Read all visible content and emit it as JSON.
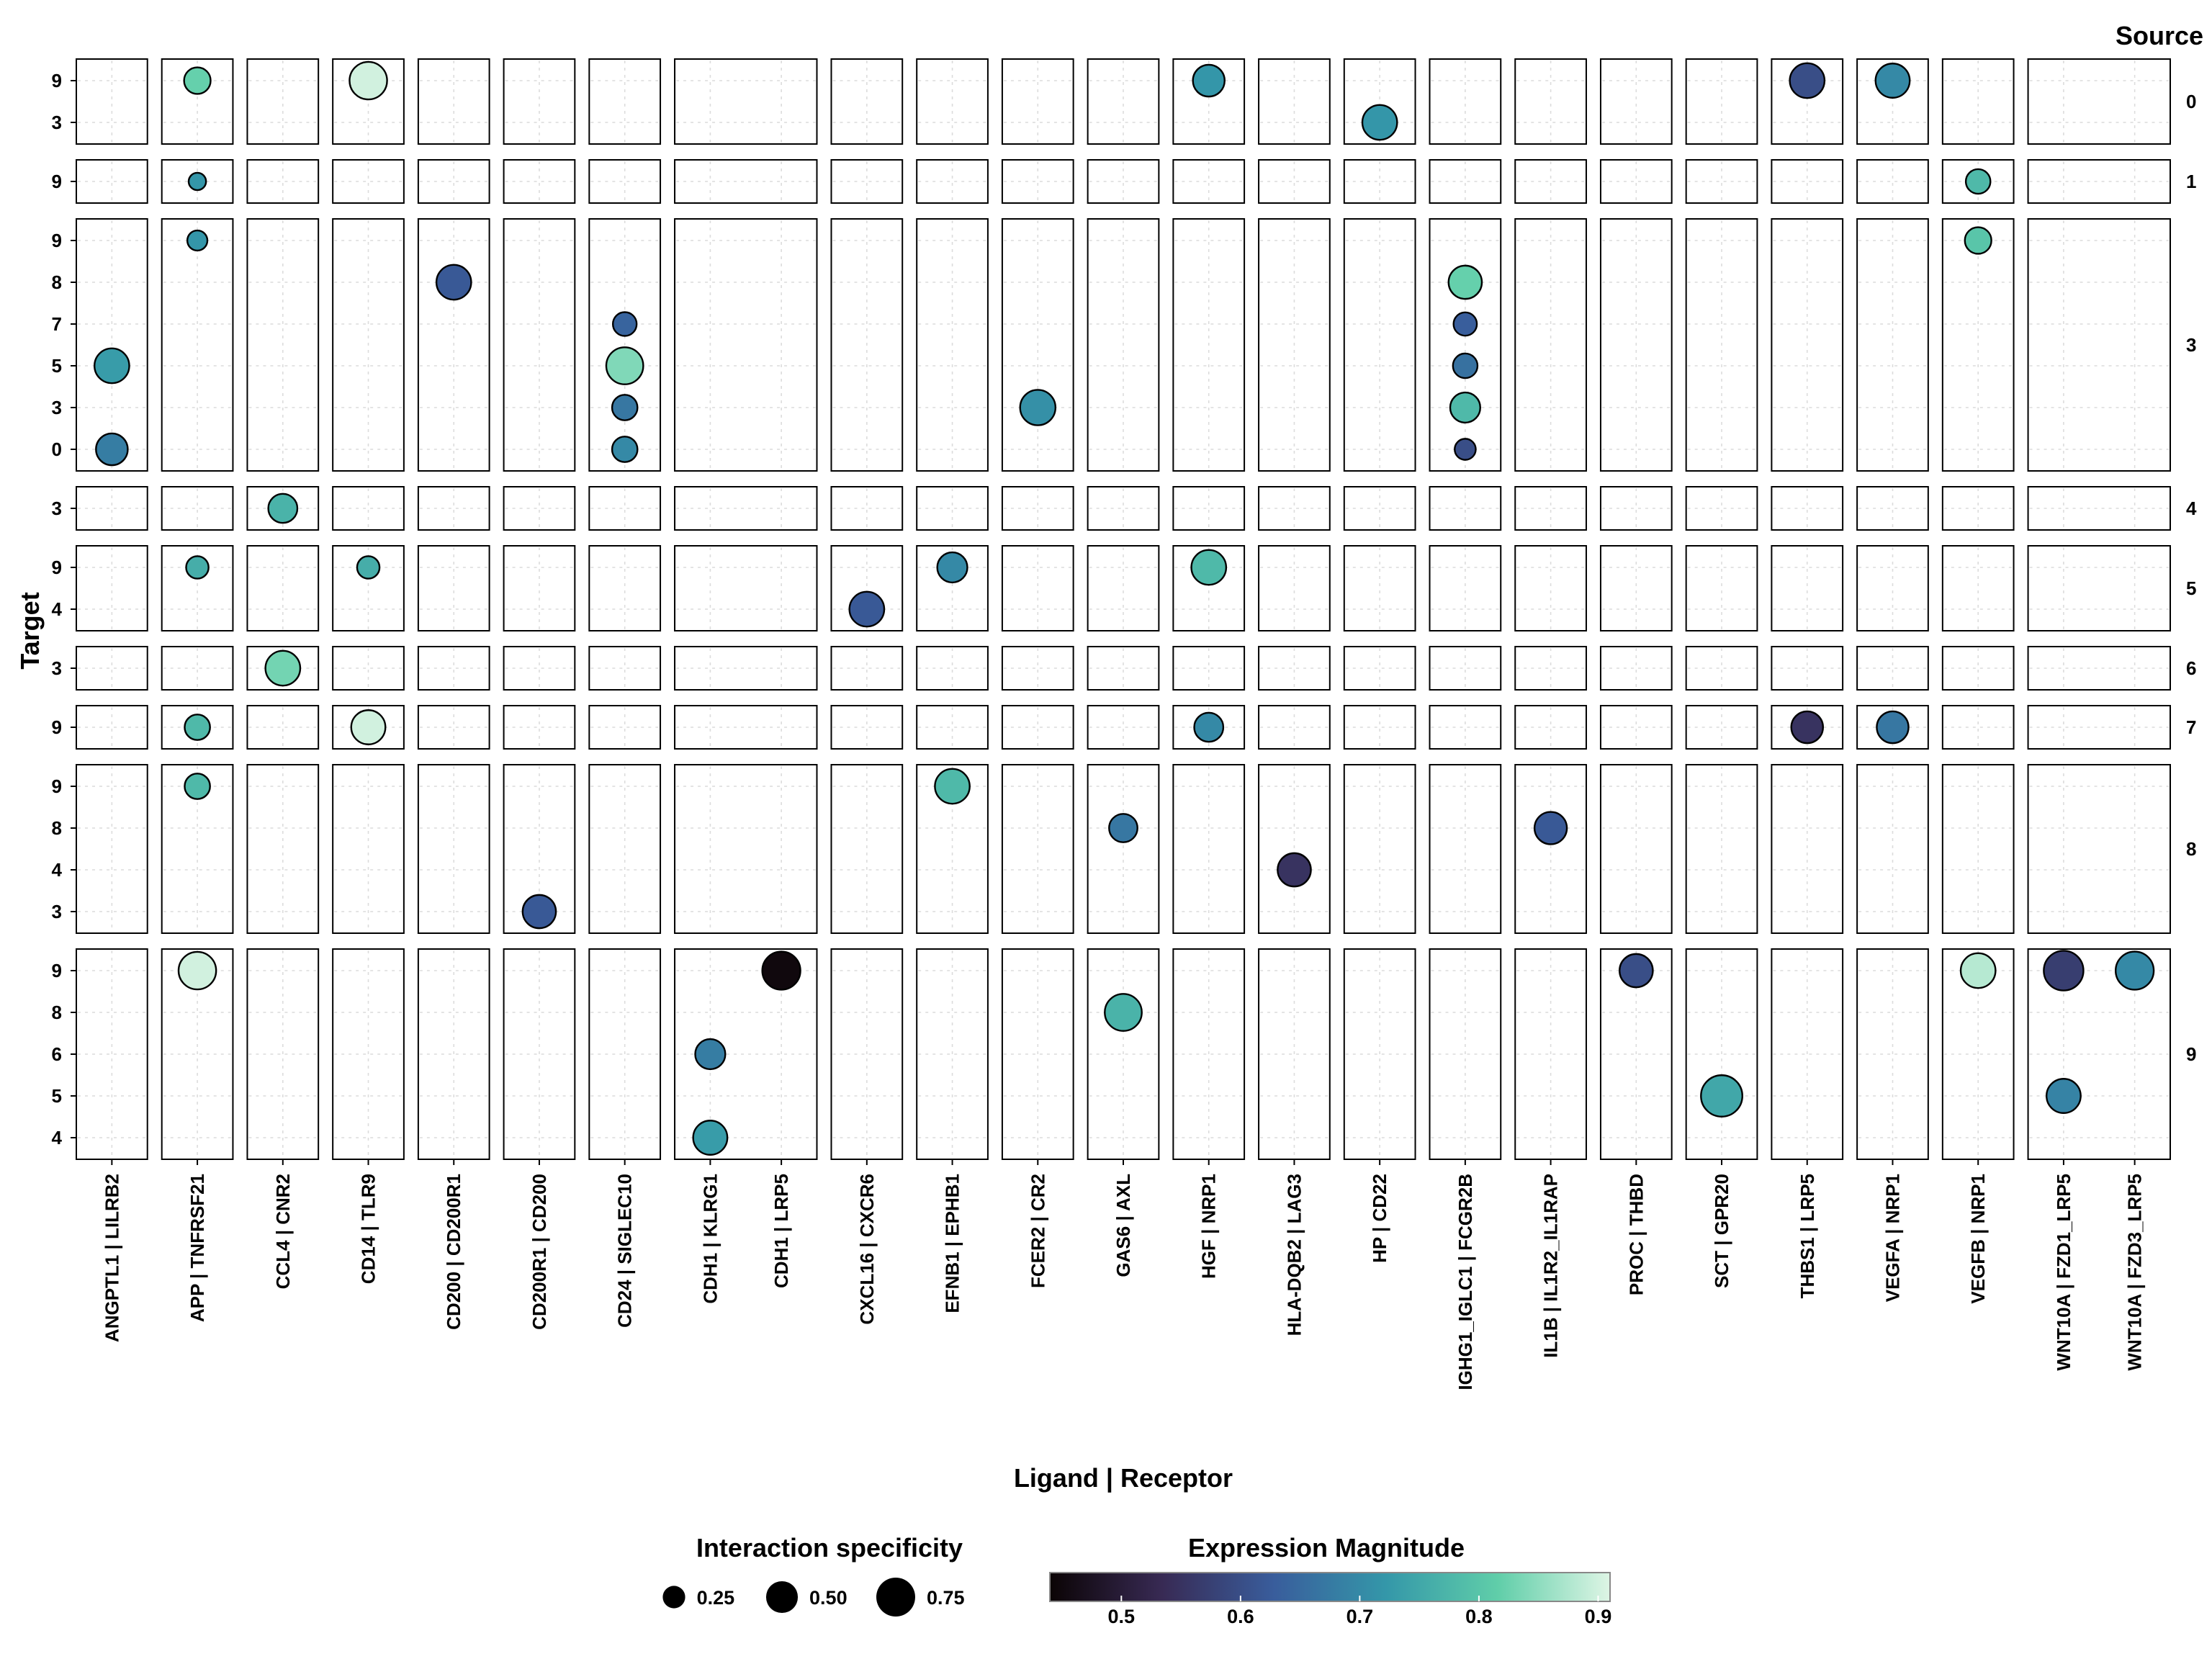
{
  "chart_data": {
    "type": "scatter",
    "subtype": "faceted dot plot",
    "xlabel": "Ligand | Receptor",
    "ylabel": "Target",
    "facet_row_title": "Source",
    "columns": [
      {
        "ligand": "ANGPTL1",
        "pairs": [
          "ANGPTL1 | LILRB2"
        ]
      },
      {
        "ligand": "APP",
        "pairs": [
          "APP | TNFRSF21"
        ]
      },
      {
        "ligand": "CCL4",
        "pairs": [
          "CCL4 | CNR2"
        ]
      },
      {
        "ligand": "CD14",
        "pairs": [
          "CD14 | TLR9"
        ]
      },
      {
        "ligand": "CD200",
        "pairs": [
          "CD200 | CD200R1"
        ]
      },
      {
        "ligand": "CD200R1",
        "pairs": [
          "CD200R1 | CD200"
        ]
      },
      {
        "ligand": "CD24",
        "pairs": [
          "CD24 | SIGLEC10"
        ]
      },
      {
        "ligand": "CDH1",
        "pairs": [
          "CDH1 | KLRG1",
          "CDH1 | LRP5"
        ]
      },
      {
        "ligand": "CXCL16",
        "pairs": [
          "CXCL16 | CXCR6"
        ]
      },
      {
        "ligand": "EFNB1",
        "pairs": [
          "EFNB1 | EPHB1"
        ]
      },
      {
        "ligand": "FCER2",
        "pairs": [
          "FCER2 | CR2"
        ]
      },
      {
        "ligand": "GAS6",
        "pairs": [
          "GAS6 | AXL"
        ]
      },
      {
        "ligand": "HGF",
        "pairs": [
          "HGF | NRP1"
        ]
      },
      {
        "ligand": "HLA-DQB2",
        "pairs": [
          "HLA-DQB2 | LAG3"
        ]
      },
      {
        "ligand": "HP",
        "pairs": [
          "HP | CD22"
        ]
      },
      {
        "ligand": "IGHG1_IGLC1",
        "pairs": [
          "IGHG1_IGLC1 | FCGR2B"
        ]
      },
      {
        "ligand": "IL1B",
        "pairs": [
          "IL1B | IL1R2_IL1RAP"
        ]
      },
      {
        "ligand": "PROC",
        "pairs": [
          "PROC | THBD"
        ]
      },
      {
        "ligand": "SCT",
        "pairs": [
          "SCT | GPR20"
        ]
      },
      {
        "ligand": "THBS1",
        "pairs": [
          "THBS1 | LRP5"
        ]
      },
      {
        "ligand": "VEGFA",
        "pairs": [
          "VEGFA | NRP1"
        ]
      },
      {
        "ligand": "VEGFB",
        "pairs": [
          "VEGFB | NRP1"
        ]
      },
      {
        "ligand": "WNT10A",
        "pairs": [
          "WNT10A | FZD1_LRP5",
          "WNT10A | FZD3_LRP5"
        ]
      }
    ],
    "rows": [
      {
        "source": "0",
        "targets": [
          "9",
          "3"
        ]
      },
      {
        "source": "1",
        "targets": [
          "9"
        ]
      },
      {
        "source": "3",
        "targets": [
          "9",
          "8",
          "7",
          "5",
          "3",
          "0"
        ]
      },
      {
        "source": "4",
        "targets": [
          "3"
        ]
      },
      {
        "source": "5",
        "targets": [
          "9",
          "4"
        ]
      },
      {
        "source": "6",
        "targets": [
          "3"
        ]
      },
      {
        "source": "7",
        "targets": [
          "9"
        ]
      },
      {
        "source": "8",
        "targets": [
          "9",
          "8",
          "4",
          "3"
        ]
      },
      {
        "source": "9",
        "targets": [
          "9",
          "8",
          "6",
          "5",
          "4"
        ]
      }
    ],
    "points": [
      {
        "source": "0",
        "target": "9",
        "pair": "APP | TNFRSF21",
        "specificity": 0.35,
        "magnitude": 0.82
      },
      {
        "source": "0",
        "target": "9",
        "pair": "CD14 | TLR9",
        "specificity": 0.7,
        "magnitude": 0.9
      },
      {
        "source": "0",
        "target": "9",
        "pair": "HGF | NRP1",
        "specificity": 0.5,
        "magnitude": 0.72
      },
      {
        "source": "0",
        "target": "3",
        "pair": "HP | CD22",
        "specificity": 0.6,
        "magnitude": 0.72
      },
      {
        "source": "0",
        "target": "9",
        "pair": "THBS1 | LRP5",
        "specificity": 0.6,
        "magnitude": 0.6
      },
      {
        "source": "0",
        "target": "9",
        "pair": "VEGFA | NRP1",
        "specificity": 0.58,
        "magnitude": 0.7
      },
      {
        "source": "1",
        "target": "9",
        "pair": "APP | TNFRSF21",
        "specificity": 0.15,
        "magnitude": 0.72
      },
      {
        "source": "1",
        "target": "9",
        "pair": "VEGFB | NRP1",
        "specificity": 0.3,
        "magnitude": 0.78
      },
      {
        "source": "3",
        "target": "5",
        "pair": "ANGPTL1 | LILRB2",
        "specificity": 0.6,
        "magnitude": 0.73
      },
      {
        "source": "3",
        "target": "0",
        "pair": "ANGPTL1 | LILRB2",
        "specificity": 0.5,
        "magnitude": 0.68
      },
      {
        "source": "3",
        "target": "9",
        "pair": "APP | TNFRSF21",
        "specificity": 0.2,
        "magnitude": 0.72
      },
      {
        "source": "3",
        "target": "8",
        "pair": "CD200 | CD200R1",
        "specificity": 0.6,
        "magnitude": 0.62
      },
      {
        "source": "3",
        "target": "7",
        "pair": "CD24 | SIGLEC10",
        "specificity": 0.28,
        "magnitude": 0.64
      },
      {
        "source": "3",
        "target": "5",
        "pair": "CD24 | SIGLEC10",
        "specificity": 0.68,
        "magnitude": 0.84
      },
      {
        "source": "3",
        "target": "3",
        "pair": "CD24 | SIGLEC10",
        "specificity": 0.32,
        "magnitude": 0.67
      },
      {
        "source": "3",
        "target": "0",
        "pair": "CD24 | SIGLEC10",
        "specificity": 0.32,
        "magnitude": 0.7
      },
      {
        "source": "3",
        "target": "3",
        "pair": "FCER2 | CR2",
        "specificity": 0.62,
        "magnitude": 0.71
      },
      {
        "source": "3",
        "target": "8",
        "pair": "IGHG1_IGLC1 | FCGR2B",
        "specificity": 0.55,
        "magnitude": 0.82
      },
      {
        "source": "3",
        "target": "7",
        "pair": "IGHG1_IGLC1 | FCGR2B",
        "specificity": 0.27,
        "magnitude": 0.63
      },
      {
        "source": "3",
        "target": "5",
        "pair": "IGHG1_IGLC1 | FCGR2B",
        "specificity": 0.3,
        "magnitude": 0.66
      },
      {
        "source": "3",
        "target": "3",
        "pair": "IGHG1_IGLC1 | FCGR2B",
        "specificity": 0.45,
        "magnitude": 0.78
      },
      {
        "source": "3",
        "target": "0",
        "pair": "IGHG1_IGLC1 | FCGR2B",
        "specificity": 0.22,
        "magnitude": 0.6
      },
      {
        "source": "3",
        "target": "9",
        "pair": "VEGFB | NRP1",
        "specificity": 0.35,
        "magnitude": 0.8
      },
      {
        "source": "4",
        "target": "3",
        "pair": "CCL4 | CNR2",
        "specificity": 0.42,
        "magnitude": 0.77
      },
      {
        "source": "5",
        "target": "9",
        "pair": "APP | TNFRSF21",
        "specificity": 0.25,
        "magnitude": 0.76
      },
      {
        "source": "5",
        "target": "9",
        "pair": "CD14 | TLR9",
        "specificity": 0.25,
        "magnitude": 0.76
      },
      {
        "source": "5",
        "target": "4",
        "pair": "CXCL16 | CXCR6",
        "specificity": 0.6,
        "magnitude": 0.62
      },
      {
        "source": "5",
        "target": "9",
        "pair": "EFNB1 | EPHB1",
        "specificity": 0.45,
        "magnitude": 0.7
      },
      {
        "source": "5",
        "target": "9",
        "pair": "HGF | NRP1",
        "specificity": 0.6,
        "magnitude": 0.78
      },
      {
        "source": "6",
        "target": "3",
        "pair": "CCL4 | CNR2",
        "specificity": 0.6,
        "magnitude": 0.83
      },
      {
        "source": "7",
        "target": "9",
        "pair": "APP | TNFRSF21",
        "specificity": 0.32,
        "magnitude": 0.78
      },
      {
        "source": "7",
        "target": "9",
        "pair": "CD14 | TLR9",
        "specificity": 0.58,
        "magnitude": 0.9
      },
      {
        "source": "7",
        "target": "9",
        "pair": "HGF | NRP1",
        "specificity": 0.42,
        "magnitude": 0.7
      },
      {
        "source": "7",
        "target": "9",
        "pair": "THBS1 | LRP5",
        "specificity": 0.5,
        "magnitude": 0.55
      },
      {
        "source": "7",
        "target": "9",
        "pair": "VEGFA | NRP1",
        "specificity": 0.5,
        "magnitude": 0.67
      },
      {
        "source": "8",
        "target": "9",
        "pair": "APP | TNFRSF21",
        "specificity": 0.32,
        "magnitude": 0.78
      },
      {
        "source": "8",
        "target": "9",
        "pair": "EFNB1 | EPHB1",
        "specificity": 0.6,
        "magnitude": 0.78
      },
      {
        "source": "8",
        "target": "8",
        "pair": "GAS6 | AXL",
        "specificity": 0.4,
        "magnitude": 0.67
      },
      {
        "source": "8",
        "target": "4",
        "pair": "HLA-DQB2 | LAG3",
        "specificity": 0.55,
        "magnitude": 0.55
      },
      {
        "source": "8",
        "target": "8",
        "pair": "IL1B | IL1R2_IL1RAP",
        "specificity": 0.52,
        "magnitude": 0.62
      },
      {
        "source": "8",
        "target": "3",
        "pair": "CD200R1 | CD200",
        "specificity": 0.55,
        "magnitude": 0.62
      },
      {
        "source": "9",
        "target": "9",
        "pair": "APP | TNFRSF21",
        "specificity": 0.7,
        "magnitude": 0.9
      },
      {
        "source": "9",
        "target": "6",
        "pair": "CDH1 | KLRG1",
        "specificity": 0.45,
        "magnitude": 0.68
      },
      {
        "source": "9",
        "target": "4",
        "pair": "CDH1 | KLRG1",
        "specificity": 0.58,
        "magnitude": 0.73
      },
      {
        "source": "9",
        "target": "9",
        "pair": "CDH1 | LRP5",
        "specificity": 0.72,
        "magnitude": 0.45
      },
      {
        "source": "9",
        "target": "8",
        "pair": "GAS6 | AXL",
        "specificity": 0.68,
        "magnitude": 0.77
      },
      {
        "source": "9",
        "target": "9",
        "pair": "PROC | THBD",
        "specificity": 0.55,
        "magnitude": 0.6
      },
      {
        "source": "9",
        "target": "5",
        "pair": "SCT | GPR20",
        "specificity": 0.85,
        "magnitude": 0.75
      },
      {
        "source": "9",
        "target": "9",
        "pair": "VEGFB | NRP1",
        "specificity": 0.6,
        "magnitude": 0.88
      },
      {
        "source": "9",
        "target": "9",
        "pair": "WNT10A | FZD1_LRP5",
        "specificity": 0.78,
        "magnitude": 0.57
      },
      {
        "source": "9",
        "target": "5",
        "pair": "WNT10A | FZD1_LRP5",
        "specificity": 0.58,
        "magnitude": 0.69
      },
      {
        "source": "9",
        "target": "9",
        "pair": "WNT10A | FZD3_LRP5",
        "specificity": 0.72,
        "magnitude": 0.7
      }
    ],
    "size_legend": {
      "title": "Interaction specificity",
      "values": [
        0.25,
        0.5,
        0.75
      ],
      "labels": [
        "0.25",
        "0.50",
        "0.75"
      ]
    },
    "color_legend": {
      "title": "Expression Magnitude",
      "range": [
        0.44,
        0.91
      ],
      "ticks": [
        0.5,
        0.6,
        0.7,
        0.8,
        0.9
      ],
      "tick_labels": [
        "0.5",
        "0.6",
        "0.7",
        "0.8",
        "0.9"
      ],
      "colormap": [
        "#0b0405",
        "#382a54",
        "#395d9c",
        "#3497a9",
        "#60cea9",
        "#def5e5"
      ]
    },
    "grid": true
  }
}
